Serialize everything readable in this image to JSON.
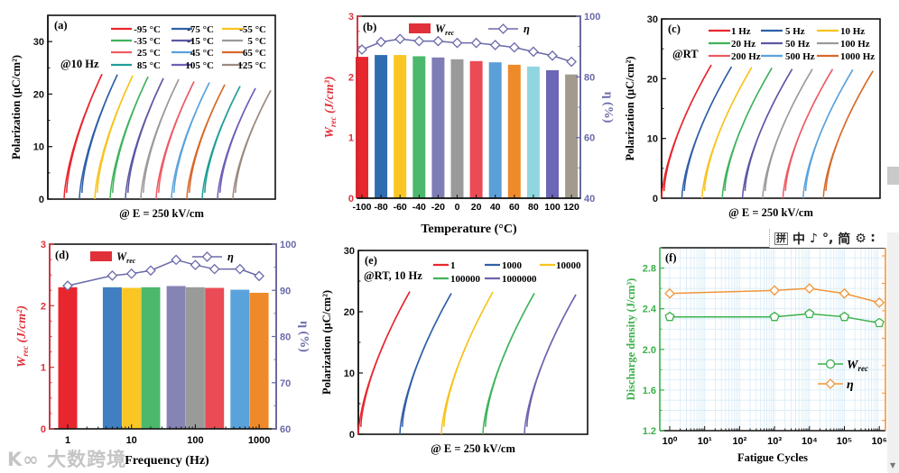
{
  "chart_data": [
    {
      "panel": "(a)",
      "type": "line",
      "annotation": "@10 Hz",
      "xlabel": "@ E = 250 kV/cm",
      "ylabel": "Polarization (μC/cm²)",
      "ylim": [
        0,
        35
      ],
      "yticks": [
        "0",
        "10",
        "20",
        "30"
      ],
      "series": [
        {
          "name": "-95 °C",
          "color": "#e8262e",
          "pmax": 23.8
        },
        {
          "name": "-75 °C",
          "color": "#2f5fa8",
          "pmax": 23.7
        },
        {
          "name": "-55 °C",
          "color": "#f7c31d",
          "pmax": 23.5
        },
        {
          "name": "-35 °C",
          "color": "#3fb35c",
          "pmax": 23.3
        },
        {
          "name": "-15 °C",
          "color": "#5b57a3",
          "pmax": 23.0
        },
        {
          "name": "5 °C",
          "color": "#9a9a9a",
          "pmax": 22.8
        },
        {
          "name": "25 °C",
          "color": "#ee5a63",
          "pmax": 22.4
        },
        {
          "name": "45 °C",
          "color": "#5aa2dc",
          "pmax": 22.2
        },
        {
          "name": "65 °C",
          "color": "#d9692a",
          "pmax": 21.8
        },
        {
          "name": "85 °C",
          "color": "#1f9e98",
          "pmax": 21.5
        },
        {
          "name": "105 °C",
          "color": "#6c5fb5",
          "pmax": 21.1
        },
        {
          "name": "125 °C",
          "color": "#9c8a7f",
          "pmax": 20.7
        }
      ]
    },
    {
      "panel": "(b)",
      "type": "bar",
      "xlabel": "Temperature (°C)",
      "ylabel_main": "W",
      "ylabel_sub": "rec",
      "ylabel_rest": " (J/cm³)",
      "y2label": "η (%)",
      "ylim": [
        0,
        3
      ],
      "yticks": [
        "0",
        "1",
        "2",
        "3"
      ],
      "y2lim": [
        40,
        100
      ],
      "y2ticks": [
        "40",
        "60",
        "80",
        "100"
      ],
      "categories": [
        "-100",
        "-80",
        "-60",
        "-40",
        "-20",
        "0",
        "20",
        "40",
        "60",
        "80",
        "100",
        "120"
      ],
      "legend_bar_main": "W",
      "legend_bar_sub": "rec",
      "legend_line": "η",
      "wrec": [
        2.33,
        2.36,
        2.36,
        2.34,
        2.32,
        2.29,
        2.26,
        2.24,
        2.2,
        2.17,
        2.11,
        2.04
      ],
      "eta": [
        89.0,
        91.5,
        92.5,
        91.8,
        91.8,
        91.2,
        91.2,
        90.5,
        89.7,
        88.3,
        87.0,
        85.0
      ],
      "bar_colors": [
        "#e8262e",
        "#2f6db0",
        "#f9c623",
        "#4bb86c",
        "#7f7db5",
        "#9a9a9a",
        "#ea4b55",
        "#5b9fd8",
        "#ef8a2a",
        "#8fd6e0",
        "#6b66b5",
        "#a39a8e"
      ],
      "left_color": "#e0303a",
      "right_color": "#6a6aaa"
    },
    {
      "panel": "(c)",
      "type": "line",
      "annotation": "@RT",
      "xlabel": "@ E = 250 kV/cm",
      "ylabel": "Polarization (μC/cm²)",
      "ylim": [
        0,
        30
      ],
      "yticks": [
        "0",
        "10",
        "20",
        "30"
      ],
      "series": [
        {
          "name": "1 Hz",
          "color": "#e8262e",
          "pmax": 22.3
        },
        {
          "name": "5 Hz",
          "color": "#2f5fa8",
          "pmax": 22.0
        },
        {
          "name": "10 Hz",
          "color": "#f7c31d",
          "pmax": 21.9
        },
        {
          "name": "20 Hz",
          "color": "#3fb35c",
          "pmax": 21.8
        },
        {
          "name": "50 Hz",
          "color": "#5b57a3",
          "pmax": 21.6
        },
        {
          "name": "100 Hz",
          "color": "#9a9a9a",
          "pmax": 21.6
        },
        {
          "name": "200 Hz",
          "color": "#ee5a63",
          "pmax": 21.6
        },
        {
          "name": "500 Hz",
          "color": "#5aa2dc",
          "pmax": 21.5
        },
        {
          "name": "1000 Hz",
          "color": "#d9692a",
          "pmax": 21.3
        }
      ]
    },
    {
      "panel": "(d)",
      "type": "bar",
      "xlabel": "Frequency (Hz)",
      "ylabel_main": "W",
      "ylabel_sub": "rec",
      "ylabel_rest": " (J/cm²)",
      "y2label": "η (%)",
      "ylim": [
        0,
        3
      ],
      "yticks": [
        "0",
        "1",
        "2",
        "3"
      ],
      "y2lim": [
        60,
        100
      ],
      "y2ticks": [
        "60",
        "70",
        "80",
        "90",
        "100"
      ],
      "x": [
        1,
        5,
        10,
        20,
        50,
        100,
        200,
        500,
        1000
      ],
      "xticks": [
        "1",
        "10",
        "100",
        "1000"
      ],
      "xscale": "log",
      "legend_bar_main": "W",
      "legend_bar_sub": "rec",
      "legend_line": "η",
      "wrec": [
        2.3,
        2.3,
        2.29,
        2.3,
        2.32,
        2.3,
        2.29,
        2.26,
        2.21
      ],
      "eta": [
        91.0,
        93.2,
        93.6,
        94.3,
        96.6,
        95.5,
        94.6,
        94.6,
        93.1
      ],
      "bar_colors": [
        "#e8262e",
        "#3f7fc2",
        "#f9c623",
        "#4bb86c",
        "#8683b5",
        "#9a9a9a",
        "#ea4b55",
        "#5aa2dc",
        "#ef8a2a"
      ],
      "left_color": "#e0303a",
      "right_color": "#6a6aaa"
    },
    {
      "panel": "(e)",
      "type": "line",
      "annotation": "@RT, 10 Hz",
      "xlabel": "@ E = 250 kV/cm",
      "ylabel": "Polarization (μC/cm²)",
      "ylim": [
        0,
        30
      ],
      "yticks": [
        "0",
        "10",
        "20",
        "30"
      ],
      "series": [
        {
          "name": "1",
          "color": "#e8262e",
          "pmax": 23.3
        },
        {
          "name": "1000",
          "color": "#2f5fa8",
          "pmax": 23.0
        },
        {
          "name": "10000",
          "color": "#f7c31d",
          "pmax": 23.2
        },
        {
          "name": "100000",
          "color": "#3fb35c",
          "pmax": 23.0
        },
        {
          "name": "1000000",
          "color": "#6c63b0",
          "pmax": 22.8
        }
      ]
    },
    {
      "panel": "(f)",
      "type": "line",
      "xlabel": "Fatigue Cycles",
      "ylabel": "Discharge density (J/cm³)",
      "ylim": [
        1.2,
        3.0
      ],
      "yticks": [
        "1.2",
        "1.6",
        "2.0",
        "2.4",
        "2.8"
      ],
      "xscale": "log",
      "xlog_exponents": [
        0,
        3,
        4,
        5,
        6
      ],
      "xticks": [
        "10⁰",
        "10¹",
        "10²",
        "10³",
        "10⁴",
        "10⁵",
        "10⁶"
      ],
      "series": [
        {
          "name_main": "W",
          "name_sub": "rec",
          "color": "#3cb04a",
          "marker": "pentagon",
          "values": [
            2.32,
            2.32,
            2.35,
            2.32,
            2.26
          ]
        },
        {
          "name_main": "η",
          "name_sub": "",
          "color": "#f0963a",
          "marker": "diamond",
          "values": [
            2.55,
            2.58,
            2.6,
            2.55,
            2.46
          ]
        }
      ],
      "left_color": "#3cb04a",
      "right_color": "#f0963a"
    }
  ],
  "ime_toolbar": {
    "items": [
      "拼",
      "中",
      "♪",
      "°,",
      "简",
      "⚙",
      "∶"
    ]
  },
  "watermark": "K∞ 大数跨境"
}
